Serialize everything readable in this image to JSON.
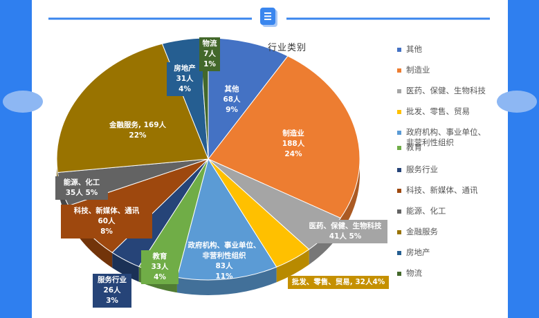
{
  "chart_data": {
    "type": "pie",
    "title": "行业类别",
    "legend_position": "right",
    "slices": [
      {
        "name": "其他",
        "value": 68,
        "percent": "9%",
        "color": "#4472c4",
        "legend_label": "其他",
        "slice_label": "其他\n68人\n9%"
      },
      {
        "name": "制造业",
        "value": 188,
        "percent": "24%",
        "color": "#ed7d31",
        "legend_label": "制造业",
        "slice_label": "制造业\n188人\n24%"
      },
      {
        "name": "医药、保健、生物科技",
        "value": 41,
        "percent": "5%",
        "color": "#a5a5a5",
        "legend_label": "医药、保健、生物科技",
        "slice_label": "医药、保健、生物科技\n41人 5%"
      },
      {
        "name": "批发、零售、贸易",
        "value": 32,
        "percent": "4%",
        "color": "#ffc000",
        "legend_label": "批发、零售、贸易",
        "slice_label": "批发、零售、贸易, 32人4%"
      },
      {
        "name": "政府机构、事业单位、非营利性组织",
        "value": 83,
        "percent": "11%",
        "color": "#5b9bd5",
        "legend_label": "政府机构、事业单位、\n非营利性组织",
        "slice_label": "政府机构、事业单位、\n非营利性组织\n83人\n11%"
      },
      {
        "name": "教育",
        "value": 33,
        "percent": "4%",
        "color": "#70ad47",
        "legend_label": "教育",
        "slice_label": "教育\n33人 4%"
      },
      {
        "name": "服务行业",
        "value": 26,
        "percent": "3%",
        "color": "#264478",
        "legend_label": "服务行业",
        "slice_label": "服务行业\n26人\n3%"
      },
      {
        "name": "科技、新媒体、通讯",
        "value": 60,
        "percent": "8%",
        "color": "#9e480e",
        "legend_label": "科技、新媒体、通讯",
        "slice_label": "科技、新媒体、通讯\n60人\n8%"
      },
      {
        "name": "能源、化工",
        "value": 35,
        "percent": "5%",
        "color": "#636363",
        "legend_label": "能源、化工",
        "slice_label": "能源、化工\n35人 5%"
      },
      {
        "name": "金融服务",
        "value": 169,
        "percent": "22%",
        "color": "#997300",
        "legend_label": "金融服务",
        "slice_label": "金融服务, 169人 22%"
      },
      {
        "name": "房地产",
        "value": 31,
        "percent": "4%",
        "color": "#255e91",
        "legend_label": "房地产",
        "slice_label": "房地产\n31人 4%"
      },
      {
        "name": "物流",
        "value": 7,
        "percent": "1%",
        "color": "#43682b",
        "legend_label": "物流",
        "slice_label": "物流\n7人\n1%"
      }
    ]
  },
  "header_icon": "document-icon",
  "colors": {
    "page_background": "#2f7fef",
    "panel": "#ffffff",
    "divider": "#3a86ee"
  }
}
